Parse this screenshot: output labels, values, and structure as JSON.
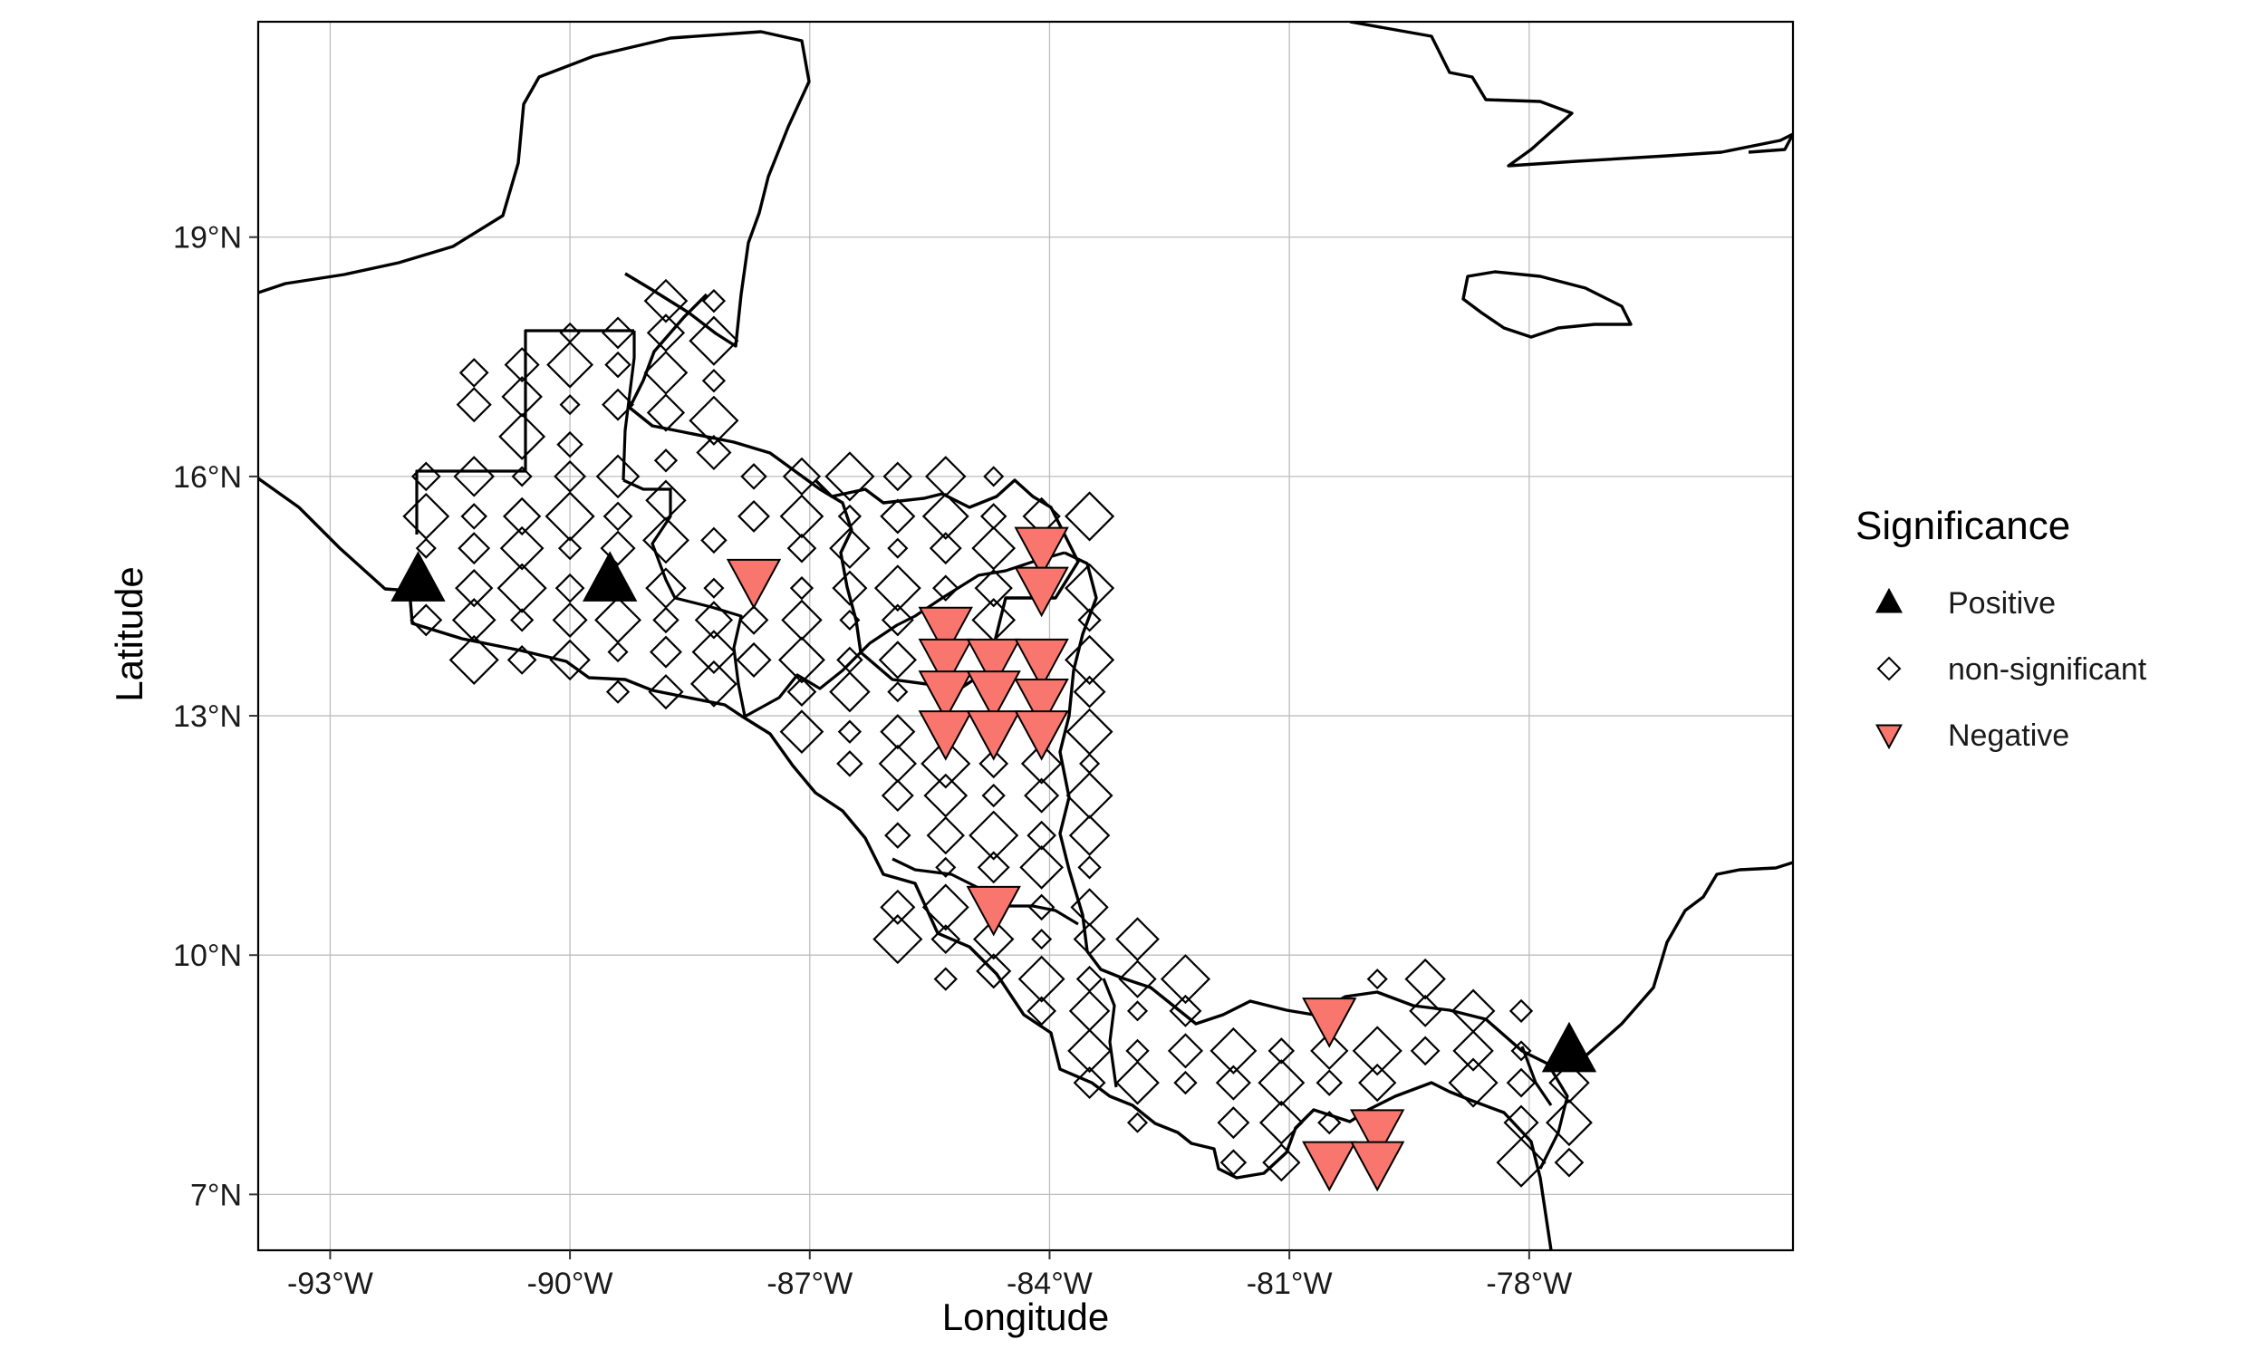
{
  "x_axis": {
    "title": "Longitude",
    "ticks": [
      {
        "value": -93,
        "label": "-93°W"
      },
      {
        "value": -90,
        "label": "-90°W"
      },
      {
        "value": -87,
        "label": "-87°W"
      },
      {
        "value": -84,
        "label": "-84°W"
      },
      {
        "value": -81,
        "label": "-81°W"
      },
      {
        "value": -78,
        "label": "-78°W"
      }
    ]
  },
  "y_axis": {
    "title": "Latitude",
    "ticks": [
      {
        "value": 7,
        "label": "7°N"
      },
      {
        "value": 10,
        "label": "10°N"
      },
      {
        "value": 13,
        "label": "13°N"
      },
      {
        "value": 16,
        "label": "16°N"
      },
      {
        "value": 19,
        "label": "19°N"
      }
    ]
  },
  "legend": {
    "title": "Significance",
    "items": [
      {
        "key": "positive",
        "label": "Positive",
        "shape": "triangle-up",
        "color": "#000000"
      },
      {
        "key": "nonsig",
        "label": "non-significant",
        "shape": "diamond-open",
        "color": "#000000"
      },
      {
        "key": "negative",
        "label": "Negative",
        "shape": "triangle-down",
        "color": "#F8766D"
      }
    ]
  },
  "colors": {
    "negative": "#F8766D",
    "positive": "#000000",
    "outline": "#000000",
    "grid": "#bdbdbd"
  },
  "chart_data": {
    "type": "scatter",
    "xlim": [
      -93.9,
      -74.7
    ],
    "ylim": [
      6.3,
      21.7
    ],
    "grid": true,
    "legend_position": "right",
    "positive": [
      {
        "lon": -91.9,
        "lat": 14.7
      },
      {
        "lon": -89.5,
        "lat": 14.7
      },
      {
        "lon": -77.5,
        "lat": 8.8
      }
    ],
    "negative": [
      {
        "lon": -87.7,
        "lat": 14.7
      },
      {
        "lon": -84.1,
        "lat": 15.1
      },
      {
        "lon": -84.1,
        "lat": 14.6
      },
      {
        "lon": -85.3,
        "lat": 14.1
      },
      {
        "lon": -85.3,
        "lat": 13.7
      },
      {
        "lon": -84.7,
        "lat": 13.7
      },
      {
        "lon": -84.1,
        "lat": 13.7
      },
      {
        "lon": -85.3,
        "lat": 13.3
      },
      {
        "lon": -84.7,
        "lat": 13.3
      },
      {
        "lon": -84.1,
        "lat": 13.2
      },
      {
        "lon": -85.3,
        "lat": 12.8
      },
      {
        "lon": -84.7,
        "lat": 12.8
      },
      {
        "lon": -84.1,
        "lat": 12.8
      },
      {
        "lon": -84.7,
        "lat": 10.6
      },
      {
        "lon": -80.5,
        "lat": 9.2
      },
      {
        "lon": -79.9,
        "lat": 7.8
      },
      {
        "lon": -80.5,
        "lat": 7.4
      },
      {
        "lon": -79.9,
        "lat": 7.4
      }
    ],
    "non_significant": [
      {
        "lon": -90.0,
        "lat": 17.8
      },
      {
        "lon": -89.4,
        "lat": 17.8
      },
      {
        "lon": -88.8,
        "lat": 18.2
      },
      {
        "lon": -88.2,
        "lat": 18.2
      },
      {
        "lon": -90.6,
        "lat": 17.4
      },
      {
        "lon": -90.0,
        "lat": 17.4
      },
      {
        "lon": -89.4,
        "lat": 17.4
      },
      {
        "lon": -88.8,
        "lat": 17.8
      },
      {
        "lon": -88.2,
        "lat": 17.7
      },
      {
        "lon": -91.2,
        "lat": 17.3
      },
      {
        "lon": -90.6,
        "lat": 17.0
      },
      {
        "lon": -90.0,
        "lat": 16.9
      },
      {
        "lon": -89.4,
        "lat": 16.9
      },
      {
        "lon": -88.8,
        "lat": 17.3
      },
      {
        "lon": -88.2,
        "lat": 17.2
      },
      {
        "lon": -91.2,
        "lat": 16.9
      },
      {
        "lon": -90.6,
        "lat": 16.5
      },
      {
        "lon": -90.0,
        "lat": 16.4
      },
      {
        "lon": -88.8,
        "lat": 16.8
      },
      {
        "lon": -88.2,
        "lat": 16.7
      },
      {
        "lon": -91.8,
        "lat": 16.0
      },
      {
        "lon": -91.2,
        "lat": 16.0
      },
      {
        "lon": -90.6,
        "lat": 16.0
      },
      {
        "lon": -90.0,
        "lat": 16.0
      },
      {
        "lon": -89.4,
        "lat": 16.0
      },
      {
        "lon": -88.8,
        "lat": 16.2
      },
      {
        "lon": -88.2,
        "lat": 16.3
      },
      {
        "lon": -91.8,
        "lat": 15.5
      },
      {
        "lon": -91.2,
        "lat": 15.5
      },
      {
        "lon": -90.6,
        "lat": 15.5
      },
      {
        "lon": -90.0,
        "lat": 15.5
      },
      {
        "lon": -89.4,
        "lat": 15.5
      },
      {
        "lon": -88.8,
        "lat": 15.7
      },
      {
        "lon": -91.8,
        "lat": 15.1
      },
      {
        "lon": -91.2,
        "lat": 15.1
      },
      {
        "lon": -90.6,
        "lat": 15.1
      },
      {
        "lon": -90.0,
        "lat": 15.1
      },
      {
        "lon": -89.4,
        "lat": 15.1
      },
      {
        "lon": -88.8,
        "lat": 15.2
      },
      {
        "lon": -88.2,
        "lat": 15.2
      },
      {
        "lon": -91.2,
        "lat": 14.6
      },
      {
        "lon": -90.6,
        "lat": 14.6
      },
      {
        "lon": -90.0,
        "lat": 14.6
      },
      {
        "lon": -88.8,
        "lat": 14.6
      },
      {
        "lon": -88.2,
        "lat": 14.6
      },
      {
        "lon": -91.8,
        "lat": 14.2
      },
      {
        "lon": -91.2,
        "lat": 14.2
      },
      {
        "lon": -90.6,
        "lat": 14.2
      },
      {
        "lon": -90.0,
        "lat": 14.2
      },
      {
        "lon": -89.4,
        "lat": 14.2
      },
      {
        "lon": -88.8,
        "lat": 14.2
      },
      {
        "lon": -88.2,
        "lat": 14.2
      },
      {
        "lon": -91.2,
        "lat": 13.7
      },
      {
        "lon": -90.6,
        "lat": 13.7
      },
      {
        "lon": -90.0,
        "lat": 13.7
      },
      {
        "lon": -89.4,
        "lat": 13.8
      },
      {
        "lon": -88.8,
        "lat": 13.8
      },
      {
        "lon": -88.2,
        "lat": 13.8
      },
      {
        "lon": -89.4,
        "lat": 13.3
      },
      {
        "lon": -88.8,
        "lat": 13.3
      },
      {
        "lon": -88.2,
        "lat": 13.4
      },
      {
        "lon": -87.7,
        "lat": 16.0
      },
      {
        "lon": -87.1,
        "lat": 16.0
      },
      {
        "lon": -86.5,
        "lat": 16.0
      },
      {
        "lon": -85.9,
        "lat": 16.0
      },
      {
        "lon": -85.3,
        "lat": 16.0
      },
      {
        "lon": -84.7,
        "lat": 16.0
      },
      {
        "lon": -87.7,
        "lat": 15.5
      },
      {
        "lon": -87.1,
        "lat": 15.5
      },
      {
        "lon": -86.5,
        "lat": 15.5
      },
      {
        "lon": -85.9,
        "lat": 15.5
      },
      {
        "lon": -85.3,
        "lat": 15.5
      },
      {
        "lon": -84.7,
        "lat": 15.5
      },
      {
        "lon": -84.1,
        "lat": 15.5
      },
      {
        "lon": -83.5,
        "lat": 15.5
      },
      {
        "lon": -87.1,
        "lat": 15.1
      },
      {
        "lon": -86.5,
        "lat": 15.1
      },
      {
        "lon": -85.9,
        "lat": 15.1
      },
      {
        "lon": -85.3,
        "lat": 15.1
      },
      {
        "lon": -84.7,
        "lat": 15.1
      },
      {
        "lon": -87.1,
        "lat": 14.6
      },
      {
        "lon": -86.5,
        "lat": 14.6
      },
      {
        "lon": -85.9,
        "lat": 14.6
      },
      {
        "lon": -85.3,
        "lat": 14.6
      },
      {
        "lon": -84.7,
        "lat": 14.6
      },
      {
        "lon": -83.5,
        "lat": 14.6
      },
      {
        "lon": -87.7,
        "lat": 14.2
      },
      {
        "lon": -87.1,
        "lat": 14.2
      },
      {
        "lon": -86.5,
        "lat": 14.2
      },
      {
        "lon": -85.9,
        "lat": 14.2
      },
      {
        "lon": -84.7,
        "lat": 14.2
      },
      {
        "lon": -83.5,
        "lat": 14.2
      },
      {
        "lon": -87.7,
        "lat": 13.7
      },
      {
        "lon": -87.1,
        "lat": 13.7
      },
      {
        "lon": -86.5,
        "lat": 13.7
      },
      {
        "lon": -85.9,
        "lat": 13.7
      },
      {
        "lon": -83.5,
        "lat": 13.7
      },
      {
        "lon": -87.1,
        "lat": 13.3
      },
      {
        "lon": -86.5,
        "lat": 13.3
      },
      {
        "lon": -85.9,
        "lat": 13.3
      },
      {
        "lon": -83.5,
        "lat": 13.3
      },
      {
        "lon": -87.1,
        "lat": 12.8
      },
      {
        "lon": -86.5,
        "lat": 12.8
      },
      {
        "lon": -85.9,
        "lat": 12.8
      },
      {
        "lon": -83.5,
        "lat": 12.8
      },
      {
        "lon": -86.5,
        "lat": 12.4
      },
      {
        "lon": -85.9,
        "lat": 12.4
      },
      {
        "lon": -85.3,
        "lat": 12.4
      },
      {
        "lon": -84.7,
        "lat": 12.4
      },
      {
        "lon": -84.1,
        "lat": 12.4
      },
      {
        "lon": -83.5,
        "lat": 12.4
      },
      {
        "lon": -85.9,
        "lat": 12.0
      },
      {
        "lon": -85.3,
        "lat": 12.0
      },
      {
        "lon": -84.7,
        "lat": 12.0
      },
      {
        "lon": -84.1,
        "lat": 12.0
      },
      {
        "lon": -83.5,
        "lat": 12.0
      },
      {
        "lon": -85.9,
        "lat": 11.5
      },
      {
        "lon": -85.3,
        "lat": 11.5
      },
      {
        "lon": -84.7,
        "lat": 11.5
      },
      {
        "lon": -84.1,
        "lat": 11.5
      },
      {
        "lon": -83.5,
        "lat": 11.5
      },
      {
        "lon": -85.3,
        "lat": 11.1
      },
      {
        "lon": -84.7,
        "lat": 11.1
      },
      {
        "lon": -84.1,
        "lat": 11.1
      },
      {
        "lon": -83.5,
        "lat": 11.1
      },
      {
        "lon": -85.9,
        "lat": 10.6
      },
      {
        "lon": -85.3,
        "lat": 10.6
      },
      {
        "lon": -84.1,
        "lat": 10.6
      },
      {
        "lon": -83.5,
        "lat": 10.6
      },
      {
        "lon": -85.9,
        "lat": 10.2
      },
      {
        "lon": -85.3,
        "lat": 10.2
      },
      {
        "lon": -84.7,
        "lat": 10.2
      },
      {
        "lon": -84.1,
        "lat": 10.2
      },
      {
        "lon": -83.5,
        "lat": 10.2
      },
      {
        "lon": -82.9,
        "lat": 10.2
      },
      {
        "lon": -85.3,
        "lat": 9.7
      },
      {
        "lon": -84.7,
        "lat": 9.8
      },
      {
        "lon": -84.1,
        "lat": 9.7
      },
      {
        "lon": -83.5,
        "lat": 9.7
      },
      {
        "lon": -82.9,
        "lat": 9.7
      },
      {
        "lon": -82.3,
        "lat": 9.7
      },
      {
        "lon": -84.1,
        "lat": 9.3
      },
      {
        "lon": -83.5,
        "lat": 9.3
      },
      {
        "lon": -82.9,
        "lat": 9.3
      },
      {
        "lon": -82.3,
        "lat": 9.3
      },
      {
        "lon": -83.5,
        "lat": 8.8
      },
      {
        "lon": -82.9,
        "lat": 8.8
      },
      {
        "lon": -82.3,
        "lat": 8.8
      },
      {
        "lon": -81.7,
        "lat": 8.8
      },
      {
        "lon": -81.1,
        "lat": 8.8
      },
      {
        "lon": -80.5,
        "lat": 8.8
      },
      {
        "lon": -79.9,
        "lat": 8.8
      },
      {
        "lon": -79.3,
        "lat": 8.8
      },
      {
        "lon": -78.7,
        "lat": 8.8
      },
      {
        "lon": -78.1,
        "lat": 8.8
      },
      {
        "lon": -83.5,
        "lat": 8.4
      },
      {
        "lon": -82.9,
        "lat": 8.4
      },
      {
        "lon": -82.3,
        "lat": 8.4
      },
      {
        "lon": -81.7,
        "lat": 8.4
      },
      {
        "lon": -81.1,
        "lat": 8.4
      },
      {
        "lon": -80.5,
        "lat": 8.4
      },
      {
        "lon": -79.9,
        "lat": 8.4
      },
      {
        "lon": -78.7,
        "lat": 8.4
      },
      {
        "lon": -78.1,
        "lat": 8.4
      },
      {
        "lon": -77.5,
        "lat": 8.4
      },
      {
        "lon": -82.9,
        "lat": 7.9
      },
      {
        "lon": -81.7,
        "lat": 7.9
      },
      {
        "lon": -81.1,
        "lat": 7.9
      },
      {
        "lon": -80.5,
        "lat": 7.9
      },
      {
        "lon": -78.1,
        "lat": 7.9
      },
      {
        "lon": -77.5,
        "lat": 7.9
      },
      {
        "lon": -81.7,
        "lat": 7.4
      },
      {
        "lon": -81.1,
        "lat": 7.4
      },
      {
        "lon": -78.1,
        "lat": 7.4
      },
      {
        "lon": -77.5,
        "lat": 7.4
      },
      {
        "lon": -79.3,
        "lat": 9.7
      },
      {
        "lon": -79.9,
        "lat": 9.7
      },
      {
        "lon": -79.3,
        "lat": 9.3
      },
      {
        "lon": -78.7,
        "lat": 9.3
      },
      {
        "lon": -78.1,
        "lat": 9.3
      }
    ]
  }
}
